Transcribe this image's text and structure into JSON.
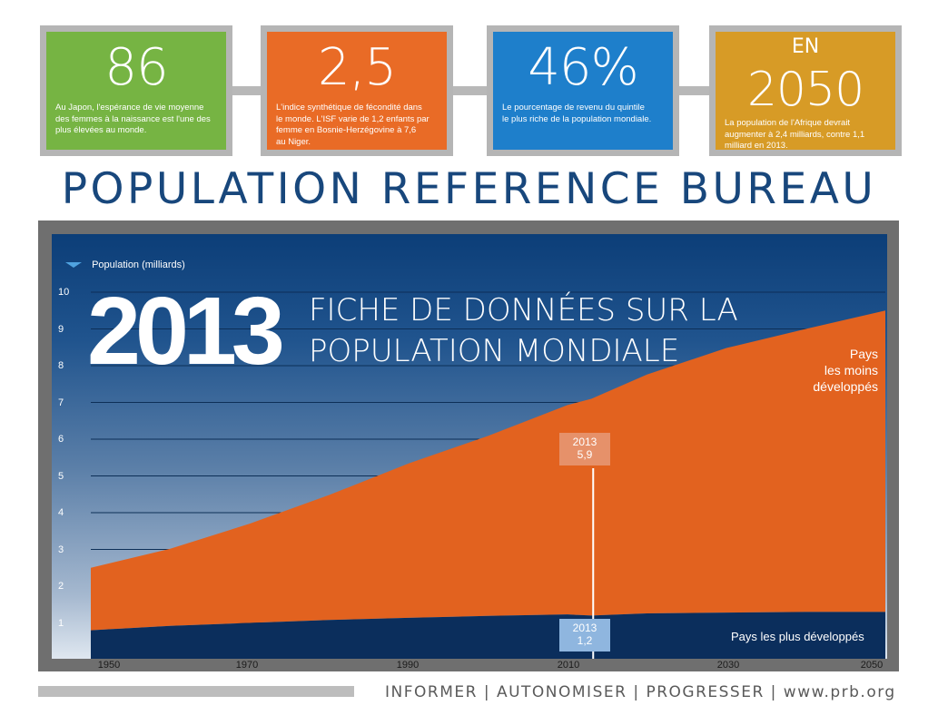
{
  "stats": [
    {
      "value": "86",
      "text_lines": [
        "Au Japon, l'espérance de vie moyenne",
        "des femmes à la naissance est l'une des",
        "plus élevées au monde."
      ],
      "color": "#76b443"
    },
    {
      "value": "2,5",
      "text_lines": [
        "L'indice synthétique de fécondité dans",
        "le monde. L'ISF varie de 1,2 enfants par",
        "femme en Bosnie-Herzégovine à 7,6",
        "au Niger."
      ],
      "color": "#e96b26"
    },
    {
      "value": "46%",
      "text_lines": [
        "Le pourcentage de revenu du quintile",
        "le plus riche de la population mondiale."
      ],
      "color": "#1e7fcb"
    },
    {
      "pre": "EN",
      "value": "2050",
      "text_lines": [
        "La population de l'Afrique devrait",
        "augmenter à 2,4 milliards, contre 1,1",
        "milliard en 2013."
      ],
      "color": "#d79b26"
    }
  ],
  "org_title": "POPULATION REFERENCE BUREAU",
  "chart_data": {
    "type": "area",
    "legend": "Population (milliards)",
    "big_year": "2013",
    "headline_lines": [
      "FICHE DE DONNÉES SUR LA",
      "POPULATION MONDIALE"
    ],
    "x_tick_labels": [
      "1950",
      "1970",
      "1990",
      "2010",
      "2030",
      "2050"
    ],
    "y_tick_labels": [
      "1",
      "2",
      "3",
      "4",
      "5",
      "6",
      "7",
      "8",
      "9",
      "10"
    ],
    "ylim": [
      0,
      10
    ],
    "xlim": [
      1950,
      2050
    ],
    "grid": true,
    "series": [
      {
        "name": "Pays les plus développés",
        "label_lines": [
          "Pays les plus développés"
        ],
        "color": "#0b2e5c",
        "x": [
          1950,
          1960,
          1970,
          1980,
          1990,
          2000,
          2010,
          2013,
          2020,
          2030,
          2040,
          2050
        ],
        "values": [
          0.8,
          0.92,
          1.0,
          1.08,
          1.14,
          1.19,
          1.23,
          1.2,
          1.26,
          1.28,
          1.3,
          1.3
        ]
      },
      {
        "name": "Pays les moins développés",
        "label_lines": [
          "Pays",
          "les moins",
          "développés"
        ],
        "color": "#e2621f",
        "x": [
          1950,
          1960,
          1970,
          1980,
          1990,
          2000,
          2010,
          2013,
          2020,
          2030,
          2040,
          2050
        ],
        "values": [
          1.7,
          2.1,
          2.7,
          3.4,
          4.2,
          4.9,
          5.7,
          5.9,
          6.5,
          7.2,
          7.7,
          8.2
        ]
      }
    ],
    "callouts": [
      {
        "year": "2013",
        "value": "5,9",
        "color": "#e6916a"
      },
      {
        "year": "2013",
        "value": "1,2",
        "color": "#8fb6df"
      }
    ]
  },
  "footer": {
    "text": "INFORMER | AUTONOMISER | PROGRESSER | www.prb.org"
  }
}
